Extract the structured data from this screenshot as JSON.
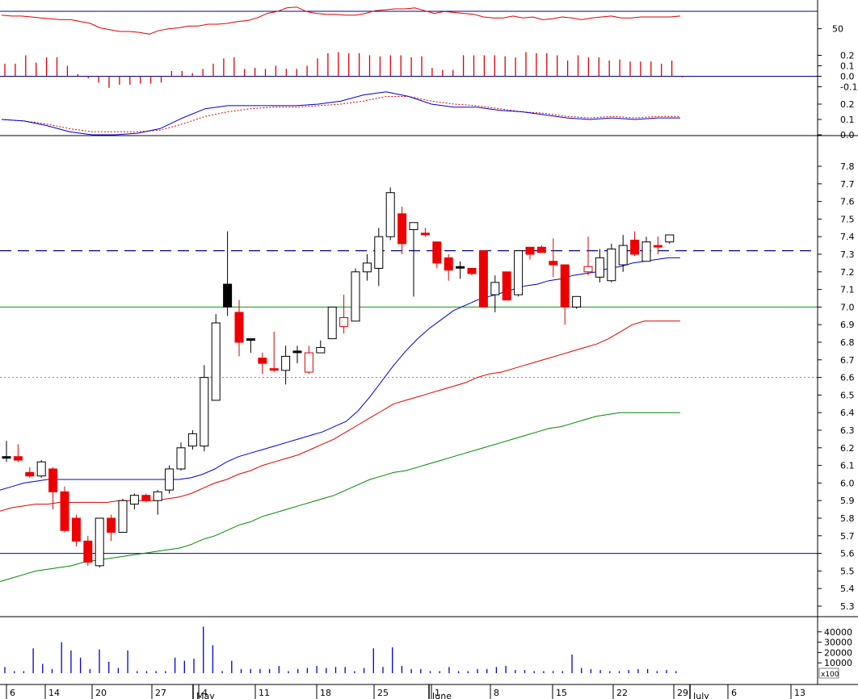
{
  "chart_data": {
    "type": "candlestick",
    "price": {
      "ylim": [
        5.25,
        7.9
      ],
      "yticks": [
        "7.8",
        "7.7",
        "7.6",
        "7.5",
        "7.4",
        "7.3",
        "7.2",
        "7.1",
        "7.0",
        "6.9",
        "6.8",
        "6.7",
        "6.6",
        "6.5",
        "6.4",
        "6.3",
        "6.2",
        "6.1",
        "6.0",
        "5.9",
        "5.8",
        "5.7",
        "5.6",
        "5.5",
        "5.4",
        "5.3"
      ],
      "hlines": [
        {
          "value": 7.0,
          "color": "#00a000",
          "style": "solid"
        },
        {
          "value": 7.32,
          "color": "#00008b",
          "style": "dashed"
        },
        {
          "value": 6.6,
          "color": "#808080",
          "style": "dotted"
        },
        {
          "value": 5.6,
          "color": "#00008b",
          "style": "solid"
        }
      ],
      "candles": [
        {
          "o": 6.15,
          "h": 6.24,
          "l": 6.12,
          "c": 6.15,
          "dir": "flat"
        },
        {
          "o": 6.15,
          "h": 6.22,
          "l": 6.12,
          "c": 6.13,
          "dir": "down"
        },
        {
          "o": 6.06,
          "h": 6.09,
          "l": 6.03,
          "c": 6.04,
          "dir": "down"
        },
        {
          "o": 6.04,
          "h": 6.13,
          "l": 6.03,
          "c": 6.12,
          "dir": "up"
        },
        {
          "o": 6.08,
          "h": 6.09,
          "l": 5.85,
          "c": 5.95,
          "dir": "down"
        },
        {
          "o": 5.95,
          "h": 5.98,
          "l": 5.72,
          "c": 5.73,
          "dir": "down"
        },
        {
          "o": 5.8,
          "h": 5.82,
          "l": 5.64,
          "c": 5.67,
          "dir": "down"
        },
        {
          "o": 5.67,
          "h": 5.7,
          "l": 5.53,
          "c": 5.55,
          "dir": "down"
        },
        {
          "o": 5.53,
          "h": 5.8,
          "l": 5.52,
          "c": 5.8,
          "dir": "up"
        },
        {
          "o": 5.8,
          "h": 5.82,
          "l": 5.67,
          "c": 5.72,
          "dir": "down"
        },
        {
          "o": 5.72,
          "h": 5.91,
          "l": 5.72,
          "c": 5.9,
          "dir": "up"
        },
        {
          "o": 5.88,
          "h": 5.94,
          "l": 5.85,
          "c": 5.93,
          "dir": "up"
        },
        {
          "o": 5.93,
          "h": 5.94,
          "l": 5.89,
          "c": 5.9,
          "dir": "down"
        },
        {
          "o": 5.9,
          "h": 5.96,
          "l": 5.82,
          "c": 5.95,
          "dir": "up"
        },
        {
          "o": 5.96,
          "h": 6.1,
          "l": 5.94,
          "c": 6.08,
          "dir": "up"
        },
        {
          "o": 6.08,
          "h": 6.23,
          "l": 6.07,
          "c": 6.2,
          "dir": "up"
        },
        {
          "o": 6.21,
          "h": 6.3,
          "l": 6.19,
          "c": 6.28,
          "dir": "up"
        },
        {
          "o": 6.21,
          "h": 6.67,
          "l": 6.18,
          "c": 6.6,
          "dir": "up"
        },
        {
          "o": 6.47,
          "h": 6.96,
          "l": 6.47,
          "c": 6.91,
          "dir": "up"
        },
        {
          "o": 7.0,
          "h": 7.43,
          "l": 6.95,
          "c": 7.13,
          "dir": "filled_black"
        },
        {
          "o": 6.97,
          "h": 7.04,
          "l": 6.72,
          "c": 6.8,
          "dir": "down"
        },
        {
          "o": 6.82,
          "h": 6.82,
          "l": 6.74,
          "c": 6.82,
          "dir": "flat"
        },
        {
          "o": 6.71,
          "h": 6.74,
          "l": 6.62,
          "c": 6.68,
          "dir": "down"
        },
        {
          "o": 6.65,
          "h": 6.86,
          "l": 6.63,
          "c": 6.65,
          "dir": "down"
        },
        {
          "o": 6.64,
          "h": 6.78,
          "l": 6.56,
          "c": 6.72,
          "dir": "up"
        },
        {
          "o": 6.75,
          "h": 6.78,
          "l": 6.68,
          "c": 6.75,
          "dir": "flat"
        },
        {
          "o": 6.74,
          "h": 6.78,
          "l": 6.62,
          "c": 6.63,
          "dir": "down_hollow"
        },
        {
          "o": 6.74,
          "h": 6.81,
          "l": 6.74,
          "c": 6.77,
          "dir": "up"
        },
        {
          "o": 6.82,
          "h": 7.0,
          "l": 6.82,
          "c": 7.0,
          "dir": "up"
        },
        {
          "o": 6.94,
          "h": 7.07,
          "l": 6.85,
          "c": 6.89,
          "dir": "down_hollow"
        },
        {
          "o": 6.92,
          "h": 7.22,
          "l": 6.92,
          "c": 7.2,
          "dir": "up"
        },
        {
          "o": 7.2,
          "h": 7.3,
          "l": 7.15,
          "c": 7.25,
          "dir": "up"
        },
        {
          "o": 7.22,
          "h": 7.45,
          "l": 7.12,
          "c": 7.4,
          "dir": "up"
        },
        {
          "o": 7.4,
          "h": 7.68,
          "l": 7.38,
          "c": 7.65,
          "dir": "up"
        },
        {
          "o": 7.53,
          "h": 7.57,
          "l": 7.3,
          "c": 7.36,
          "dir": "down"
        },
        {
          "o": 7.44,
          "h": 7.48,
          "l": 7.06,
          "c": 7.48,
          "dir": "up"
        },
        {
          "o": 7.42,
          "h": 7.45,
          "l": 7.4,
          "c": 7.42,
          "dir": "down"
        },
        {
          "o": 7.37,
          "h": 7.37,
          "l": 7.22,
          "c": 7.25,
          "dir": "down"
        },
        {
          "o": 7.28,
          "h": 7.3,
          "l": 7.15,
          "c": 7.21,
          "dir": "down"
        },
        {
          "o": 7.23,
          "h": 7.26,
          "l": 7.16,
          "c": 7.23,
          "dir": "flat"
        },
        {
          "o": 7.22,
          "h": 7.22,
          "l": 7.18,
          "c": 7.19,
          "dir": "down"
        },
        {
          "o": 7.32,
          "h": 7.32,
          "l": 7.0,
          "c": 7.0,
          "dir": "down"
        },
        {
          "o": 7.07,
          "h": 7.18,
          "l": 6.97,
          "c": 7.14,
          "dir": "up"
        },
        {
          "o": 7.2,
          "h": 7.2,
          "l": 7.04,
          "c": 7.04,
          "dir": "down"
        },
        {
          "o": 7.07,
          "h": 7.32,
          "l": 7.06,
          "c": 7.32,
          "dir": "up"
        },
        {
          "o": 7.34,
          "h": 7.34,
          "l": 7.27,
          "c": 7.3,
          "dir": "down"
        },
        {
          "o": 7.34,
          "h": 7.35,
          "l": 7.32,
          "c": 7.31,
          "dir": "down"
        },
        {
          "o": 7.26,
          "h": 7.39,
          "l": 7.17,
          "c": 7.24,
          "dir": "down"
        },
        {
          "o": 7.24,
          "h": 7.24,
          "l": 6.9,
          "c": 7.0,
          "dir": "down"
        },
        {
          "o": 7.0,
          "h": 7.06,
          "l": 6.99,
          "c": 7.06,
          "dir": "up"
        },
        {
          "o": 7.2,
          "h": 7.4,
          "l": 7.18,
          "c": 7.23,
          "dir": "down_hollow"
        },
        {
          "o": 7.17,
          "h": 7.33,
          "l": 7.14,
          "c": 7.28,
          "dir": "up"
        },
        {
          "o": 7.15,
          "h": 7.36,
          "l": 7.14,
          "c": 7.33,
          "dir": "up"
        },
        {
          "o": 7.24,
          "h": 7.41,
          "l": 7.2,
          "c": 7.35,
          "dir": "up"
        },
        {
          "o": 7.38,
          "h": 7.43,
          "l": 7.29,
          "c": 7.3,
          "dir": "down"
        },
        {
          "o": 7.26,
          "h": 7.4,
          "l": 7.26,
          "c": 7.37,
          "dir": "up"
        },
        {
          "o": 7.35,
          "h": 7.4,
          "l": 7.3,
          "c": 7.35,
          "dir": "down"
        },
        {
          "o": 7.37,
          "h": 7.41,
          "l": 7.36,
          "c": 7.41,
          "dir": "up"
        }
      ],
      "moving_averages": [
        {
          "color": "#0000cc",
          "values": [
            5.96,
            5.98,
            6.0,
            6.01,
            6.02,
            6.02,
            6.02,
            6.02,
            6.02,
            6.02,
            6.02,
            6.02,
            6.02,
            6.02,
            6.02,
            6.02,
            6.03,
            6.05,
            6.08,
            6.12,
            6.15,
            6.17,
            6.19,
            6.21,
            6.23,
            6.25,
            6.27,
            6.29,
            6.32,
            6.35,
            6.41,
            6.49,
            6.58,
            6.67,
            6.75,
            6.82,
            6.88,
            6.93,
            6.98,
            7.01,
            7.04,
            7.06,
            7.08,
            7.1,
            7.12,
            7.13,
            7.15,
            7.16,
            7.18,
            7.19,
            7.2,
            7.22,
            7.23,
            7.25,
            7.26,
            7.27,
            7.28,
            7.28
          ]
        },
        {
          "color": "#dd0000",
          "values": [
            5.84,
            5.86,
            5.87,
            5.88,
            5.88,
            5.89,
            5.89,
            5.89,
            5.89,
            5.89,
            5.9,
            5.9,
            5.9,
            5.9,
            5.91,
            5.92,
            5.94,
            5.97,
            6.0,
            6.02,
            6.05,
            6.07,
            6.1,
            6.12,
            6.14,
            6.16,
            6.19,
            6.22,
            6.25,
            6.29,
            6.33,
            6.37,
            6.41,
            6.45,
            6.47,
            6.49,
            6.51,
            6.53,
            6.55,
            6.57,
            6.6,
            6.62,
            6.63,
            6.65,
            6.67,
            6.69,
            6.71,
            6.73,
            6.75,
            6.77,
            6.79,
            6.82,
            6.86,
            6.9,
            6.92,
            6.92,
            6.92,
            6.92
          ]
        },
        {
          "color": "#008800",
          "values": [
            5.44,
            5.46,
            5.48,
            5.5,
            5.51,
            5.52,
            5.53,
            5.55,
            5.56,
            5.57,
            5.58,
            5.59,
            5.6,
            5.61,
            5.62,
            5.63,
            5.65,
            5.68,
            5.7,
            5.73,
            5.76,
            5.78,
            5.81,
            5.83,
            5.85,
            5.87,
            5.89,
            5.91,
            5.93,
            5.96,
            5.99,
            6.02,
            6.04,
            6.06,
            6.07,
            6.09,
            6.11,
            6.13,
            6.15,
            6.17,
            6.19,
            6.21,
            6.23,
            6.25,
            6.27,
            6.29,
            6.31,
            6.32,
            6.34,
            6.36,
            6.38,
            6.39,
            6.4,
            6.4,
            6.4,
            6.4,
            6.4,
            6.4
          ]
        }
      ]
    },
    "volume": {
      "ylim": [
        0,
        50000
      ],
      "yticks": [
        "40000",
        "30000",
        "20000",
        "10000"
      ],
      "multiplier_label": "x100",
      "values": [
        6000,
        2000,
        2000,
        24000,
        9000,
        4000,
        30000,
        22000,
        15000,
        4000,
        23000,
        11000,
        5000,
        22000,
        2000,
        2000,
        2000,
        2000,
        15000,
        12000,
        14000,
        45000,
        27000,
        2000,
        12000,
        4000,
        4000,
        4000,
        4000,
        7000,
        2000,
        4000,
        5000,
        7000,
        5000,
        6000,
        6000,
        2000,
        5000,
        24000,
        6000,
        25000,
        7000,
        4000,
        4000,
        2000,
        2000,
        6000,
        2000,
        2000,
        4000,
        4000,
        6000,
        7000,
        3000,
        3000,
        2000,
        2000,
        2000,
        2000,
        18000,
        5000,
        4000,
        3000,
        2000,
        2000,
        3000,
        4000,
        4000,
        2000,
        3000,
        2000
      ]
    },
    "macd": {
      "ylim": [
        0,
        0.3
      ],
      "yticks": [
        "0.2",
        "0.1",
        "0.0"
      ],
      "line1_color": "#0000cc",
      "line2_color": "#dd0000",
      "line1": [
        0.1,
        0.09,
        0.06,
        0.02,
        0.0,
        0.0,
        0.01,
        0.04,
        0.11,
        0.17,
        0.19,
        0.19,
        0.19,
        0.19,
        0.2,
        0.22,
        0.26,
        0.28,
        0.25,
        0.2,
        0.18,
        0.18,
        0.16,
        0.15,
        0.13,
        0.11,
        0.1,
        0.11,
        0.1,
        0.11,
        0.11
      ],
      "line2": [
        0.1,
        0.09,
        0.07,
        0.04,
        0.02,
        0.02,
        0.02,
        0.03,
        0.07,
        0.12,
        0.15,
        0.17,
        0.18,
        0.18,
        0.19,
        0.2,
        0.22,
        0.25,
        0.25,
        0.22,
        0.2,
        0.19,
        0.17,
        0.15,
        0.14,
        0.12,
        0.11,
        0.12,
        0.11,
        0.12,
        0.12
      ]
    },
    "histogram": {
      "ylim": [
        -0.15,
        0.25
      ],
      "yticks": [
        "0.2",
        "0.1",
        "0.0",
        "-0.1"
      ],
      "values": [
        0.12,
        0.12,
        0.2,
        0.13,
        0.18,
        0.18,
        0.1,
        0.02,
        -0.02,
        -0.06,
        -0.11,
        -0.08,
        -0.08,
        -0.07,
        -0.07,
        -0.06,
        0.05,
        0.05,
        0.03,
        0.07,
        0.12,
        0.17,
        0.18,
        0.07,
        0.08,
        0.07,
        0.1,
        0.07,
        0.07,
        0.1,
        0.17,
        0.22,
        0.23,
        0.22,
        0.22,
        0.2,
        0.19,
        0.2,
        0.2,
        0.18,
        0.19,
        0.08,
        0.06,
        0.06,
        0.2,
        0.2,
        0.2,
        0.2,
        0.19,
        0.18,
        0.23,
        0.22,
        0.22,
        0.2,
        0.15,
        0.2,
        0.18,
        0.18,
        0.15,
        0.16,
        0.14,
        0.14,
        0.14,
        0.12,
        0.15,
        -0.01
      ]
    },
    "rsi": {
      "yticks": [
        "50"
      ],
      "ylim": [
        30,
        80
      ],
      "values": [
        65,
        64,
        64,
        63,
        62,
        61,
        60,
        60,
        58,
        56,
        51,
        49,
        47,
        47,
        46,
        44,
        48,
        50,
        51,
        53,
        53,
        55,
        55,
        56,
        58,
        59,
        62,
        67,
        69,
        73,
        74,
        69,
        67,
        66,
        66,
        65,
        65,
        67,
        70,
        71,
        72,
        72,
        73,
        70,
        67,
        69,
        68,
        67,
        66,
        63,
        62,
        62,
        64,
        62,
        63,
        60,
        61,
        63,
        62,
        60,
        62,
        63,
        64,
        62,
        62,
        63,
        63,
        63,
        63,
        64
      ]
    },
    "x_axis": {
      "day_labels": [
        "6",
        "14",
        "20",
        "27",
        "4",
        "11",
        "18",
        "25",
        "1",
        "8",
        "15",
        "22",
        "29",
        "6",
        "13"
      ],
      "month_labels": [
        "May",
        "June",
        "July"
      ]
    }
  }
}
